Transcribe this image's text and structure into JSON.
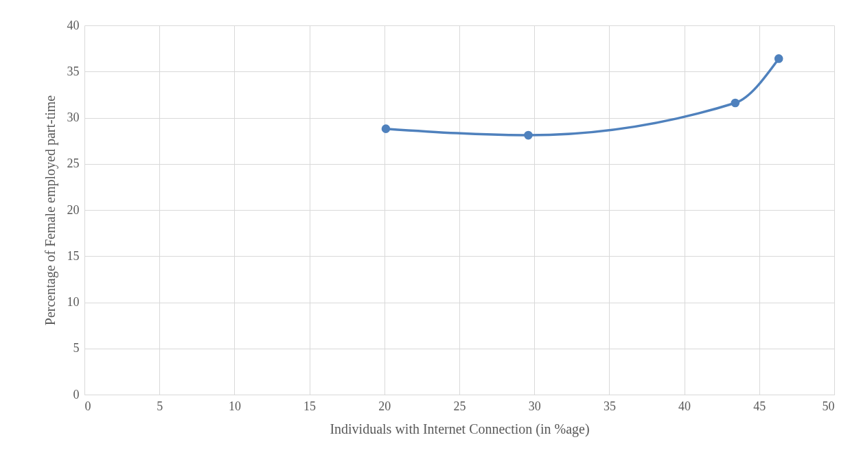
{
  "chart_data": {
    "type": "line",
    "xlabel": "Individuals with Internet Connection (in %age)",
    "ylabel": "Percentage of Female employed part-time",
    "x": [
      20.1,
      29.6,
      43.4,
      46.3
    ],
    "series": [
      {
        "color": "#4f81bd",
        "values": [
          28.8,
          28.1,
          31.6,
          36.4
        ]
      }
    ],
    "xlim": [
      0,
      50
    ],
    "xticks": [
      0,
      5,
      10,
      15,
      20,
      25,
      30,
      35,
      40,
      45,
      50
    ],
    "ylim": [
      0,
      40
    ],
    "yticks": [
      0,
      5,
      10,
      15,
      20,
      25,
      30,
      35,
      40
    ],
    "grid": true,
    "marker": "circle",
    "line_style": "solid"
  }
}
